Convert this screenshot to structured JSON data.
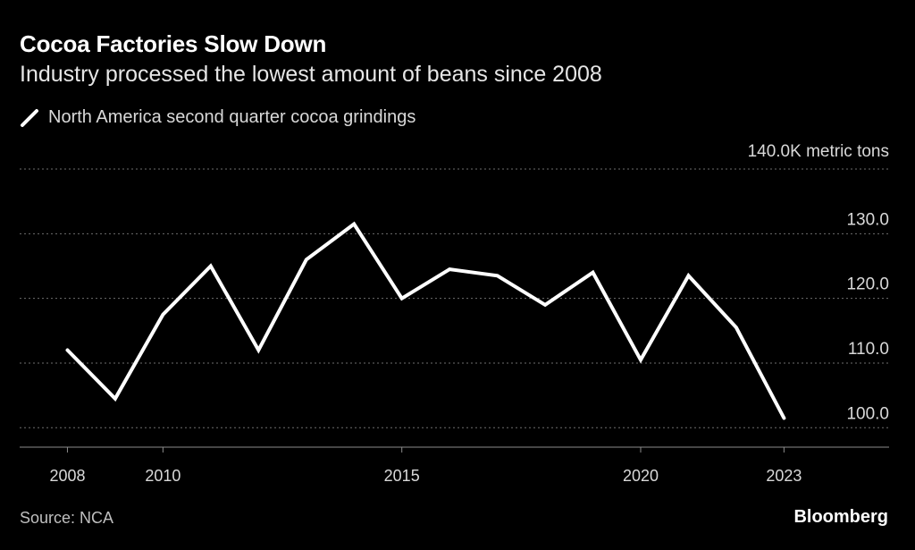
{
  "chart_data": {
    "type": "line",
    "title": "Cocoa Factories Slow Down",
    "subtitle": "Industry processed the lowest amount of beans since 2008",
    "series": [
      {
        "name": "North America second quarter cocoa grindings",
        "color": "#ffffff",
        "x": [
          2008,
          2009,
          2010,
          2011,
          2012,
          2013,
          2014,
          2015,
          2016,
          2017,
          2018,
          2019,
          2020,
          2021,
          2022,
          2023
        ],
        "values": [
          112.0,
          104.5,
          117.5,
          125.0,
          112.0,
          126.0,
          131.5,
          120.0,
          124.5,
          123.5,
          119.0,
          124.0,
          110.5,
          123.5,
          115.5,
          101.5
        ]
      }
    ],
    "ylabel": "",
    "y_unit_label": "140.0K metric tons",
    "ylim": [
      97,
      140
    ],
    "yticks": [
      {
        "value": 130,
        "label": "130.0"
      },
      {
        "value": 120,
        "label": "120.0"
      },
      {
        "value": 110,
        "label": "110.0"
      },
      {
        "value": 100,
        "label": "100.0"
      }
    ],
    "xticks": [
      {
        "value": 2008,
        "label": "2008"
      },
      {
        "value": 2010,
        "label": "2010"
      },
      {
        "value": 2015,
        "label": "2015"
      },
      {
        "value": 2020,
        "label": "2020"
      },
      {
        "value": 2023,
        "label": "2023"
      }
    ],
    "grid": true,
    "legend_position": "top-left"
  },
  "footer": {
    "source": "Source: NCA",
    "brand": "Bloomberg"
  },
  "colors": {
    "background": "#000000",
    "line": "#ffffff",
    "grid": "#6e6e6e"
  }
}
